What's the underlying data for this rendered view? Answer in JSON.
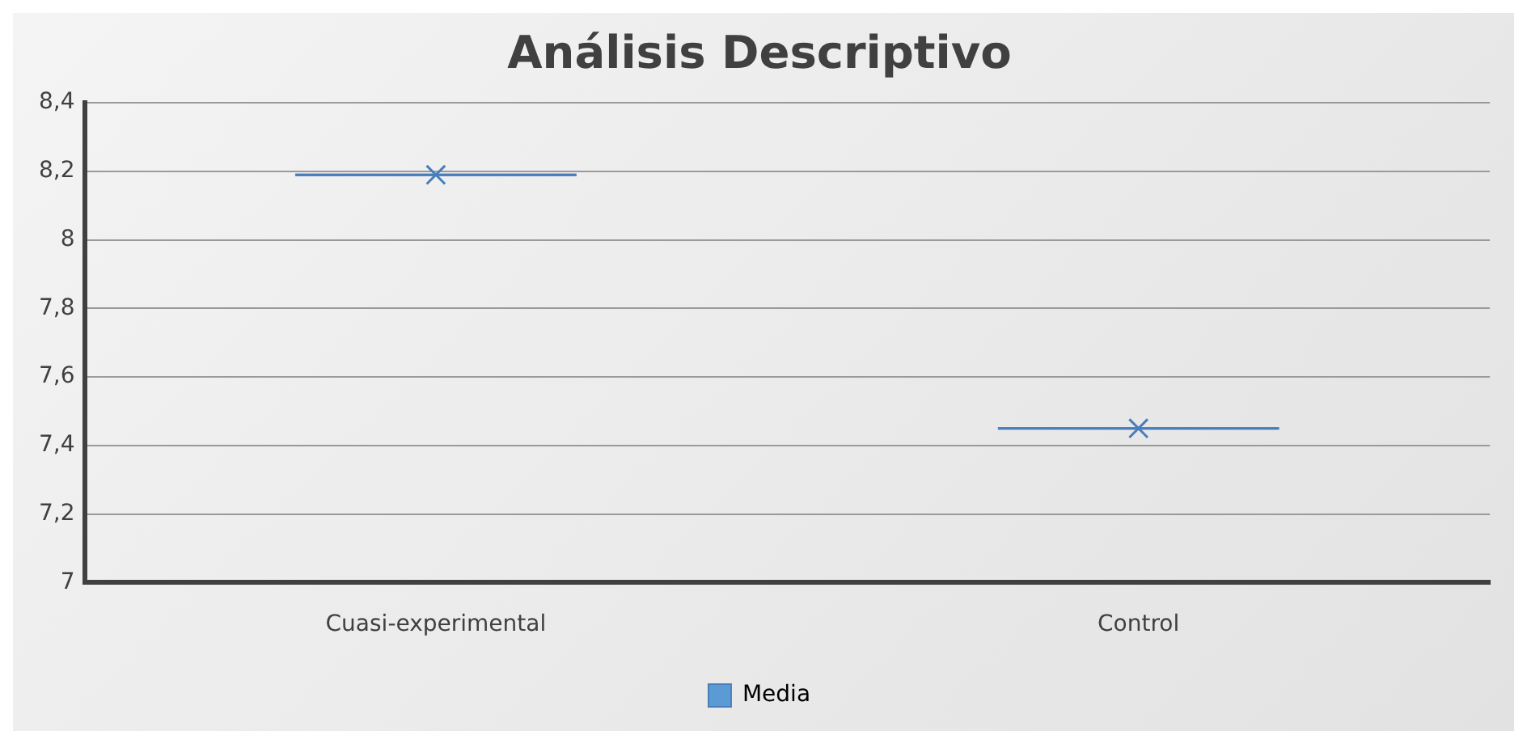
{
  "chart_data": {
    "type": "box",
    "title": "Análisis Descriptivo",
    "categories": [
      "Cuasi-experimental",
      "Control"
    ],
    "series": [
      {
        "name": "Media",
        "color": "#4a7ebb",
        "boxes": [
          {
            "low": 8.19,
            "q1": 8.19,
            "median": 8.19,
            "q3": 8.19,
            "high": 8.19,
            "mean": 8.19
          },
          {
            "low": 7.45,
            "q1": 7.45,
            "median": 7.45,
            "q3": 7.45,
            "high": 7.45,
            "mean": 7.45
          }
        ]
      }
    ],
    "ylim": [
      7,
      8.4
    ],
    "yticks": [
      7,
      {
        "value": 7.2,
        "label": "7,2"
      },
      {
        "value": 7.4,
        "label": "7,4"
      },
      {
        "value": 7.6,
        "label": "7,6"
      },
      {
        "value": 7.8,
        "label": "7,8"
      },
      8,
      {
        "value": 8.2,
        "label": "8,2"
      },
      {
        "value": 8.4,
        "label": "8,4"
      }
    ],
    "grid": "y",
    "legend": "bottom",
    "marker": "cross"
  }
}
